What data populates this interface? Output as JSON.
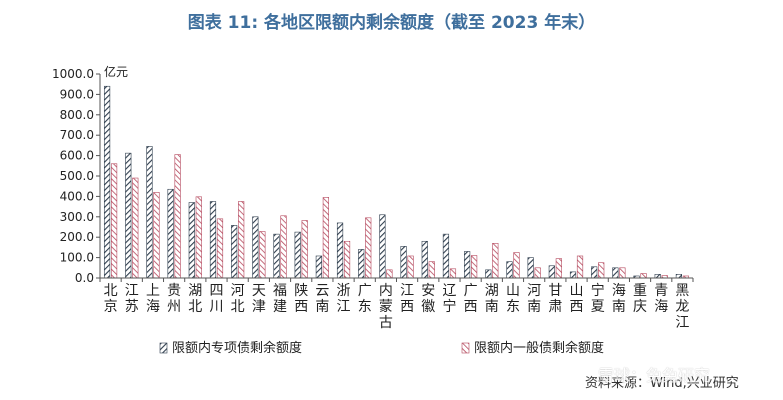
{
  "title": "图表 11: 各地区限额内剩余额度（截至 2023 年末）",
  "source": "资料来源：Wind,兴业研究",
  "watermark": "雪球：兔兔研究",
  "colors": {
    "series1": "#2f3e4e",
    "series2": "#b5485d"
  },
  "chart_data": {
    "type": "bar",
    "ylabel": "亿元",
    "ylim": [
      0,
      1000
    ],
    "yticks": [
      "0.0",
      "100.0",
      "200.0",
      "300.0",
      "400.0",
      "500.0",
      "600.0",
      "700.0",
      "800.0",
      "900.0",
      "1000.0"
    ],
    "categories": [
      "北京",
      "江苏",
      "上海",
      "贵州",
      "湖北",
      "四川",
      "河北",
      "天津",
      "福建",
      "陕西",
      "云南",
      "浙江",
      "广东",
      "内蒙古",
      "江西",
      "安徽",
      "辽宁",
      "广西",
      "湖南",
      "山东",
      "河南",
      "甘肃",
      "山西",
      "宁夏",
      "海南",
      "重庆",
      "青海",
      "黑龙江"
    ],
    "series": [
      {
        "name": "限额内专项债剩余额度",
        "values": [
          940,
          612,
          645,
          435,
          370,
          375,
          258,
          300,
          215,
          225,
          108,
          270,
          140,
          310,
          155,
          180,
          215,
          130,
          40,
          80,
          100,
          60,
          30,
          55,
          50,
          10,
          18,
          18
        ]
      },
      {
        "name": "限额内一般债剩余额度",
        "values": [
          560,
          490,
          420,
          605,
          398,
          290,
          375,
          228,
          305,
          282,
          395,
          180,
          295,
          40,
          108,
          80,
          45,
          110,
          170,
          125,
          50,
          95,
          108,
          75,
          50,
          22,
          12,
          10
        ]
      }
    ],
    "legend_position": "bottom",
    "grid": false
  }
}
